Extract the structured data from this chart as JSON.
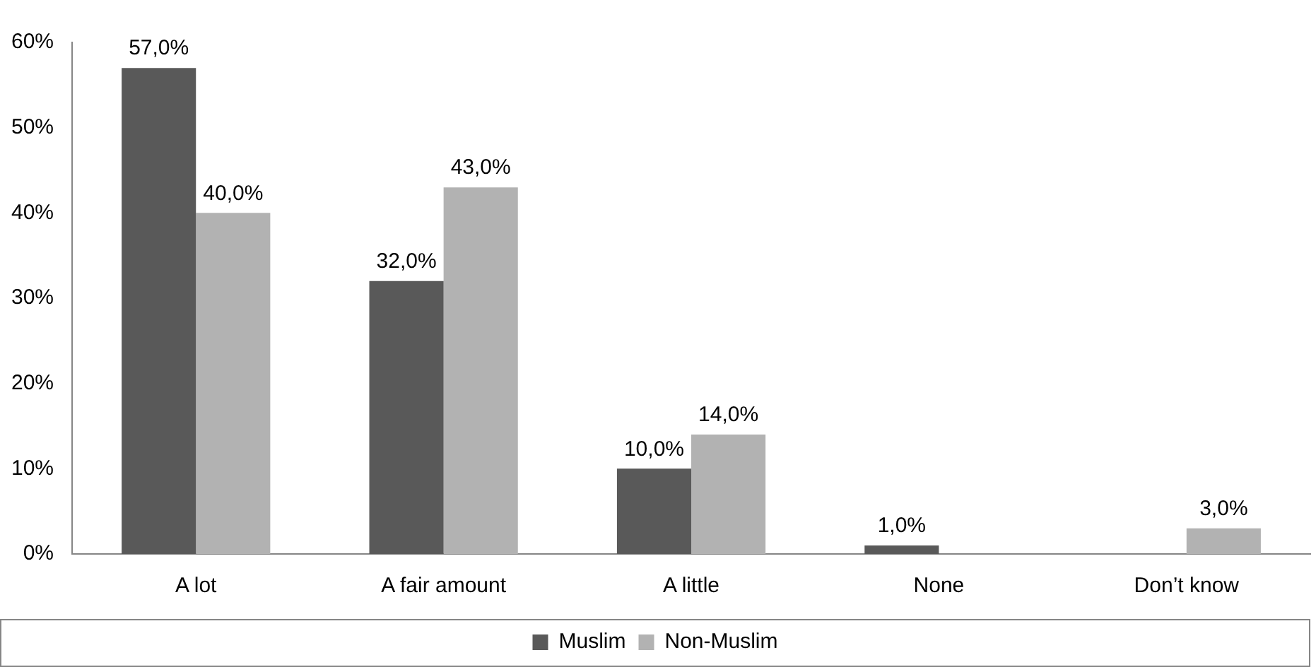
{
  "chart_data": {
    "type": "bar",
    "categories": [
      "A lot",
      "A fair amount",
      "A little",
      "None",
      "Don’t know"
    ],
    "series": [
      {
        "name": "Muslim",
        "color": "#595959",
        "values": [
          57,
          32,
          10,
          1,
          null
        ],
        "value_labels": [
          "57,0%",
          "32,0%",
          "10,0%",
          "1,0%",
          null
        ]
      },
      {
        "name": "Non-Muslim",
        "color": "#b2b2b2",
        "values": [
          40,
          43,
          14,
          null,
          3
        ],
        "value_labels": [
          "40,0%",
          "43,0%",
          "14,0%",
          null,
          "3,0%"
        ]
      }
    ],
    "ylim": [
      0,
      60
    ],
    "yticks": [
      {
        "value": 0,
        "label": "0%"
      },
      {
        "value": 10,
        "label": "10%"
      },
      {
        "value": 20,
        "label": "20%"
      },
      {
        "value": 30,
        "label": "30%"
      },
      {
        "value": 40,
        "label": "40%"
      },
      {
        "value": 50,
        "label": "50%"
      },
      {
        "value": 60,
        "label": "60%"
      }
    ],
    "grid": false,
    "legend": "bottom"
  }
}
